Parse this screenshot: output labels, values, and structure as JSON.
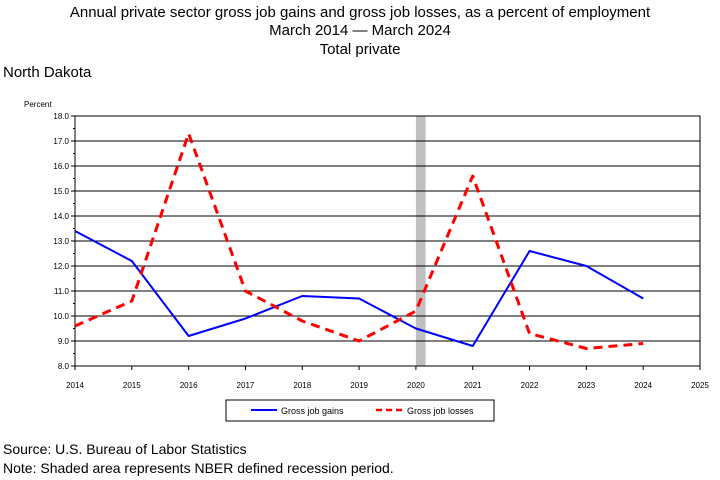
{
  "header": {
    "title_line1": "Annual private sector gross job gains and gross job losses, as a percent of employment",
    "title_line2": "March 2014 — March 2024",
    "title_line3": "Total private",
    "region": "North Dakota"
  },
  "footer": {
    "source": "Source: U.S. Bureau of Labor Statistics",
    "note": "Note: Shaded area represents NBER defined recession period."
  },
  "colors": {
    "gains": "#0000ff",
    "losses": "#ff0000",
    "recession": "#c0c0c0"
  },
  "chart_data": {
    "type": "line",
    "ylabel": "Percent",
    "xlim": [
      2014,
      2025
    ],
    "ylim": [
      8.0,
      18.0
    ],
    "x_ticks": [
      "2014",
      "2015",
      "2016",
      "2017",
      "2018",
      "2019",
      "2020",
      "2021",
      "2022",
      "2023",
      "2024",
      "2025"
    ],
    "y_ticks": [
      "8.0",
      "9.0",
      "10.0",
      "11.0",
      "12.0",
      "13.0",
      "14.0",
      "15.0",
      "16.0",
      "17.0",
      "18.0"
    ],
    "grid": true,
    "recession_band": [
      2020.0,
      2020.17
    ],
    "legend_position": "bottom-center",
    "series": [
      {
        "name": "Gross job gains",
        "style": "solid",
        "x": [
          2014,
          2015,
          2016,
          2017,
          2018,
          2019,
          2020,
          2021,
          2022,
          2023,
          2024
        ],
        "values": [
          13.4,
          12.2,
          9.2,
          9.9,
          10.8,
          10.7,
          9.5,
          8.8,
          12.6,
          12.0,
          10.7
        ]
      },
      {
        "name": "Gross job losses",
        "style": "dashed",
        "x": [
          2014,
          2015,
          2016,
          2017,
          2018,
          2019,
          2020,
          2021,
          2022,
          2023,
          2024
        ],
        "values": [
          9.6,
          10.6,
          17.3,
          11.0,
          9.8,
          9.0,
          10.2,
          15.6,
          9.3,
          8.7,
          8.9
        ]
      }
    ]
  }
}
